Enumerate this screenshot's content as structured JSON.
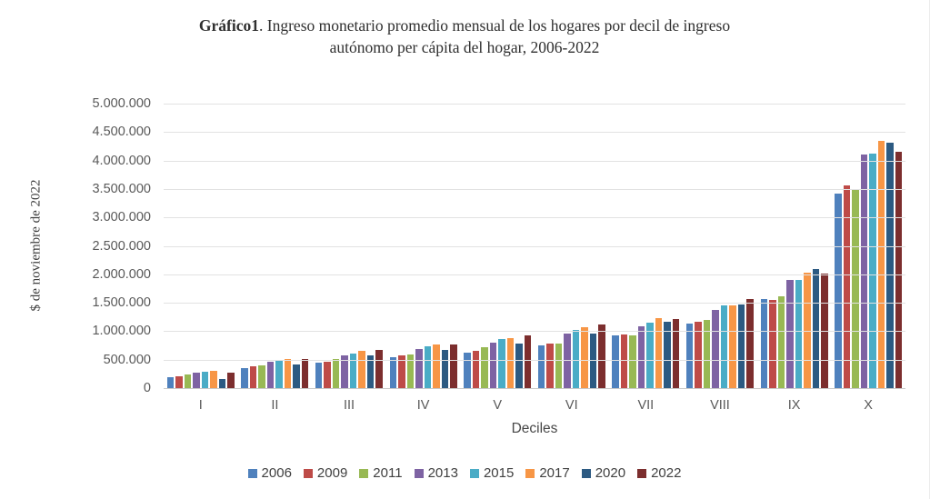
{
  "title": {
    "bold": "Gráfico1",
    "line1_rest": ". Ingreso monetario promedio mensual de los hogares por decil de ingreso",
    "line2": "autónomo per cápita del hogar, 2006-2022"
  },
  "axes": {
    "y_title": "$ de noviembre de 2022",
    "x_title": "Deciles",
    "y_ticks": [
      "0",
      "500.000",
      "1.000.000",
      "1.500.000",
      "2.000.000",
      "2.500.000",
      "3.000.000",
      "3.500.000",
      "4.000.000",
      "4.500.000",
      "5.000.000"
    ]
  },
  "chart_data": {
    "type": "bar",
    "title": "Gráfico1. Ingreso monetario promedio mensual de los hogares por decil de ingreso autónomo per cápita del hogar, 2006-2022",
    "xlabel": "Deciles",
    "ylabel": "$ de noviembre de 2022",
    "ylim": [
      0,
      5000000
    ],
    "grid": true,
    "legend_position": "bottom",
    "categories": [
      "I",
      "II",
      "III",
      "IV",
      "V",
      "VI",
      "VII",
      "VIII",
      "IX",
      "X"
    ],
    "series": [
      {
        "name": "2006",
        "color": "#4F81BD",
        "values": [
          190000,
          350000,
          450000,
          540000,
          620000,
          750000,
          920000,
          1130000,
          1560000,
          3420000
        ]
      },
      {
        "name": "2009",
        "color": "#BE4B48",
        "values": [
          205000,
          380000,
          470000,
          575000,
          650000,
          785000,
          940000,
          1160000,
          1550000,
          3560000
        ]
      },
      {
        "name": "2011",
        "color": "#98B954",
        "values": [
          235000,
          400000,
          515000,
          585000,
          720000,
          785000,
          920000,
          1200000,
          1610000,
          3500000
        ]
      },
      {
        "name": "2013",
        "color": "#7E63A3",
        "values": [
          280000,
          460000,
          580000,
          690000,
          805000,
          955000,
          1080000,
          1370000,
          1900000,
          4100000
        ]
      },
      {
        "name": "2015",
        "color": "#4AACC6",
        "values": [
          295000,
          500000,
          610000,
          730000,
          870000,
          1025000,
          1150000,
          1460000,
          1900000,
          4120000
        ]
      },
      {
        "name": "2017",
        "color": "#F79646",
        "values": [
          300000,
          510000,
          655000,
          775000,
          880000,
          1070000,
          1230000,
          1450000,
          2030000,
          4350000
        ]
      },
      {
        "name": "2020",
        "color": "#2C5A82",
        "values": [
          160000,
          415000,
          570000,
          665000,
          790000,
          965000,
          1160000,
          1470000,
          2090000,
          4310000
        ]
      },
      {
        "name": "2022",
        "color": "#7C2E2E",
        "values": [
          280000,
          515000,
          670000,
          775000,
          935000,
          1120000,
          1220000,
          1570000,
          2010000,
          4160000
        ]
      }
    ]
  }
}
